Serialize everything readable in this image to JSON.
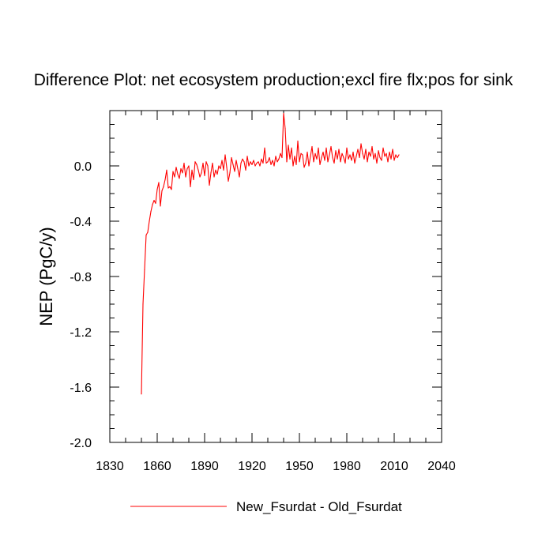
{
  "chart_data": {
    "type": "line",
    "title": "Difference Plot: net ecosystem production;excl fire flx;pos for sink",
    "xlabel": "",
    "ylabel": "NEP  (PgC/y)",
    "xlim": [
      1830,
      2040
    ],
    "ylim": [
      -2.0,
      0.4
    ],
    "x_ticks": [
      1830,
      1860,
      1890,
      1920,
      1950,
      1980,
      2010,
      2040
    ],
    "x_tick_labels": [
      "1830",
      "1860",
      "1890",
      "1920",
      "1950",
      "1980",
      "2010",
      "2040"
    ],
    "y_ticks": [
      0.0,
      -0.4,
      -0.8,
      -1.2,
      -1.6,
      -2.0
    ],
    "y_tick_labels": [
      "0.0",
      "-0.4",
      "-0.8",
      "-1.2",
      "-1.6",
      "-2.0"
    ],
    "legend_position": "bottom",
    "grid": false,
    "series": [
      {
        "name": "New_Fsurdat - Old_Fsurdat",
        "color": "#ff0000",
        "x": [
          1850,
          1851,
          1852,
          1853,
          1854,
          1855,
          1856,
          1857,
          1858,
          1859,
          1860,
          1861,
          1862,
          1863,
          1864,
          1865,
          1866,
          1867,
          1868,
          1869,
          1870,
          1871,
          1872,
          1873,
          1874,
          1875,
          1876,
          1877,
          1878,
          1879,
          1880,
          1881,
          1882,
          1883,
          1884,
          1885,
          1886,
          1887,
          1888,
          1889,
          1890,
          1891,
          1892,
          1893,
          1894,
          1895,
          1896,
          1897,
          1898,
          1899,
          1900,
          1901,
          1902,
          1903,
          1904,
          1905,
          1906,
          1907,
          1908,
          1909,
          1910,
          1911,
          1912,
          1913,
          1914,
          1915,
          1916,
          1917,
          1918,
          1919,
          1920,
          1921,
          1922,
          1923,
          1924,
          1925,
          1926,
          1927,
          1928,
          1929,
          1930,
          1931,
          1932,
          1933,
          1934,
          1935,
          1936,
          1937,
          1938,
          1939,
          1940,
          1941,
          1942,
          1943,
          1944,
          1945,
          1946,
          1947,
          1948,
          1949,
          1950,
          1951,
          1952,
          1953,
          1954,
          1955,
          1956,
          1957,
          1958,
          1959,
          1960,
          1961,
          1962,
          1963,
          1964,
          1965,
          1966,
          1967,
          1968,
          1969,
          1970,
          1971,
          1972,
          1973,
          1974,
          1975,
          1976,
          1977,
          1978,
          1979,
          1980,
          1981,
          1982,
          1983,
          1984,
          1985,
          1986,
          1987,
          1988,
          1989,
          1990,
          1991,
          1992,
          1993,
          1994,
          1995,
          1996,
          1997,
          1998,
          1999,
          2000,
          2001,
          2002,
          2003,
          2004,
          2005,
          2006,
          2007,
          2008,
          2009,
          2010,
          2011,
          2012,
          2013
        ],
        "values": [
          -1.65,
          -1.0,
          -0.75,
          -0.5,
          -0.48,
          -0.4,
          -0.33,
          -0.28,
          -0.25,
          -0.27,
          -0.17,
          -0.12,
          -0.29,
          -0.18,
          -0.15,
          -0.1,
          -0.03,
          -0.16,
          -0.15,
          -0.17,
          -0.04,
          -0.08,
          -0.01,
          -0.06,
          -0.09,
          -0.02,
          -0.05,
          0.02,
          -0.08,
          -0.02,
          0.0,
          -0.15,
          -0.03,
          -0.1,
          0.03,
          0.01,
          -0.03,
          -0.08,
          -0.05,
          0.02,
          -0.07,
          0.03,
          0.0,
          -0.14,
          -0.05,
          0.02,
          -0.08,
          -0.03,
          -0.06,
          0.0,
          -0.02,
          0.04,
          -0.03,
          0.08,
          -0.01,
          -0.11,
          -0.05,
          0.06,
          0.01,
          -0.04,
          0.04,
          -0.02,
          -0.08,
          0.02,
          0.05,
          0.03,
          -0.03,
          0.07,
          0.0,
          0.03,
          0.01,
          0.04,
          0.0,
          0.02,
          0.03,
          0.0,
          0.05,
          0.02,
          0.13,
          0.02,
          0.03,
          0.06,
          0.01,
          0.04,
          0.0,
          0.07,
          0.03,
          0.05,
          0.09,
          0.06,
          0.38,
          0.27,
          0.03,
          0.15,
          0.05,
          0.13,
          0.0,
          0.07,
          0.01,
          0.18,
          0.03,
          0.09,
          0.08,
          -0.01,
          0.02,
          0.1,
          0.0,
          0.07,
          0.14,
          0.03,
          0.09,
          0.05,
          0.13,
          0.01,
          0.06,
          0.1,
          0.04,
          0.13,
          0.03,
          0.08,
          0.14,
          0.06,
          0.02,
          0.11,
          0.05,
          0.12,
          0.03,
          0.09,
          0.06,
          0.02,
          0.13,
          0.05,
          0.08,
          0.04,
          0.1,
          0.02,
          0.07,
          0.12,
          0.06,
          0.16,
          0.09,
          0.05,
          0.12,
          0.03,
          0.1,
          0.07,
          0.14,
          0.05,
          0.09,
          0.02,
          0.11,
          0.06,
          0.04,
          0.13,
          0.07,
          0.09,
          0.03,
          0.1,
          0.05,
          0.12,
          0.04,
          0.08,
          0.06,
          0.08
        ]
      }
    ]
  }
}
